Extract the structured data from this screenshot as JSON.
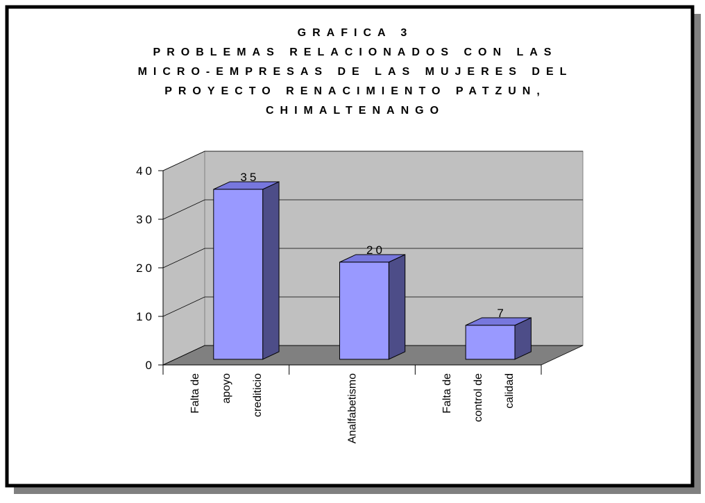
{
  "chart_data": {
    "type": "bar3d",
    "title": [
      "GRAFICA 3",
      "PROBLEMAS RELACIONADOS CON LAS",
      "MICRO-EMPRESAS DE LAS MUJERES DEL",
      "PROYECTO RENACIMIENTO PATZUN,",
      "CHIMALTENANGO"
    ],
    "categories": [
      [
        "Falta de",
        "apoyo",
        "crediticio"
      ],
      [
        "Analfabetismo"
      ],
      [
        "Falta de",
        "control de",
        "calidad"
      ]
    ],
    "values": [
      35,
      20,
      7
    ],
    "color": "#9999ff",
    "ylim": [
      0,
      40
    ],
    "yticks": [
      0,
      10,
      20,
      30,
      40
    ],
    "grid": true
  }
}
